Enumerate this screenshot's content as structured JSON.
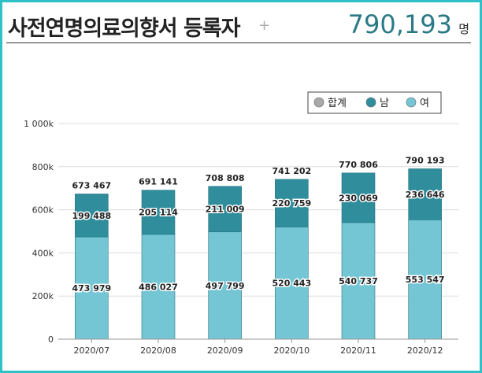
{
  "header": {
    "title": "사전연명의료의향서 등록자",
    "plus": "+",
    "total": "790,193",
    "unit": "명"
  },
  "legend": [
    {
      "label": "합계",
      "color": "#a9a9a9"
    },
    {
      "label": "남",
      "color": "#2f8d9c"
    },
    {
      "label": "여",
      "color": "#74c6d4"
    }
  ],
  "chart_data": {
    "type": "bar",
    "stacked": true,
    "categories": [
      "2020/07",
      "2020/08",
      "2020/09",
      "2020/10",
      "2020/11",
      "2020/12"
    ],
    "series": [
      {
        "name": "여",
        "values": [
          473979,
          486027,
          497799,
          520443,
          540737,
          553547
        ],
        "labels": [
          "473 979",
          "486 027",
          "497 799",
          "520 443",
          "540 737",
          "553 547"
        ],
        "color": "#74c6d4"
      },
      {
        "name": "남",
        "values": [
          199488,
          205114,
          211009,
          220759,
          230069,
          236646
        ],
        "labels": [
          "199 488",
          "205 114",
          "211 009",
          "220 759",
          "230 069",
          "236 646"
        ],
        "color": "#2f8d9c"
      }
    ],
    "totals": [
      673467,
      691141,
      708808,
      741202,
      770806,
      790193
    ],
    "total_labels": [
      "673 467",
      "691 141",
      "708 808",
      "741 202",
      "770 806",
      "790 193"
    ],
    "y_ticks": [
      0,
      200000,
      400000,
      600000,
      800000,
      1000000
    ],
    "y_tick_labels": [
      "0",
      "200k",
      "400k",
      "600k",
      "800k",
      "1 000k"
    ],
    "ylim": [
      0,
      1000000
    ],
    "grid": true,
    "legend_position": "top-right"
  }
}
